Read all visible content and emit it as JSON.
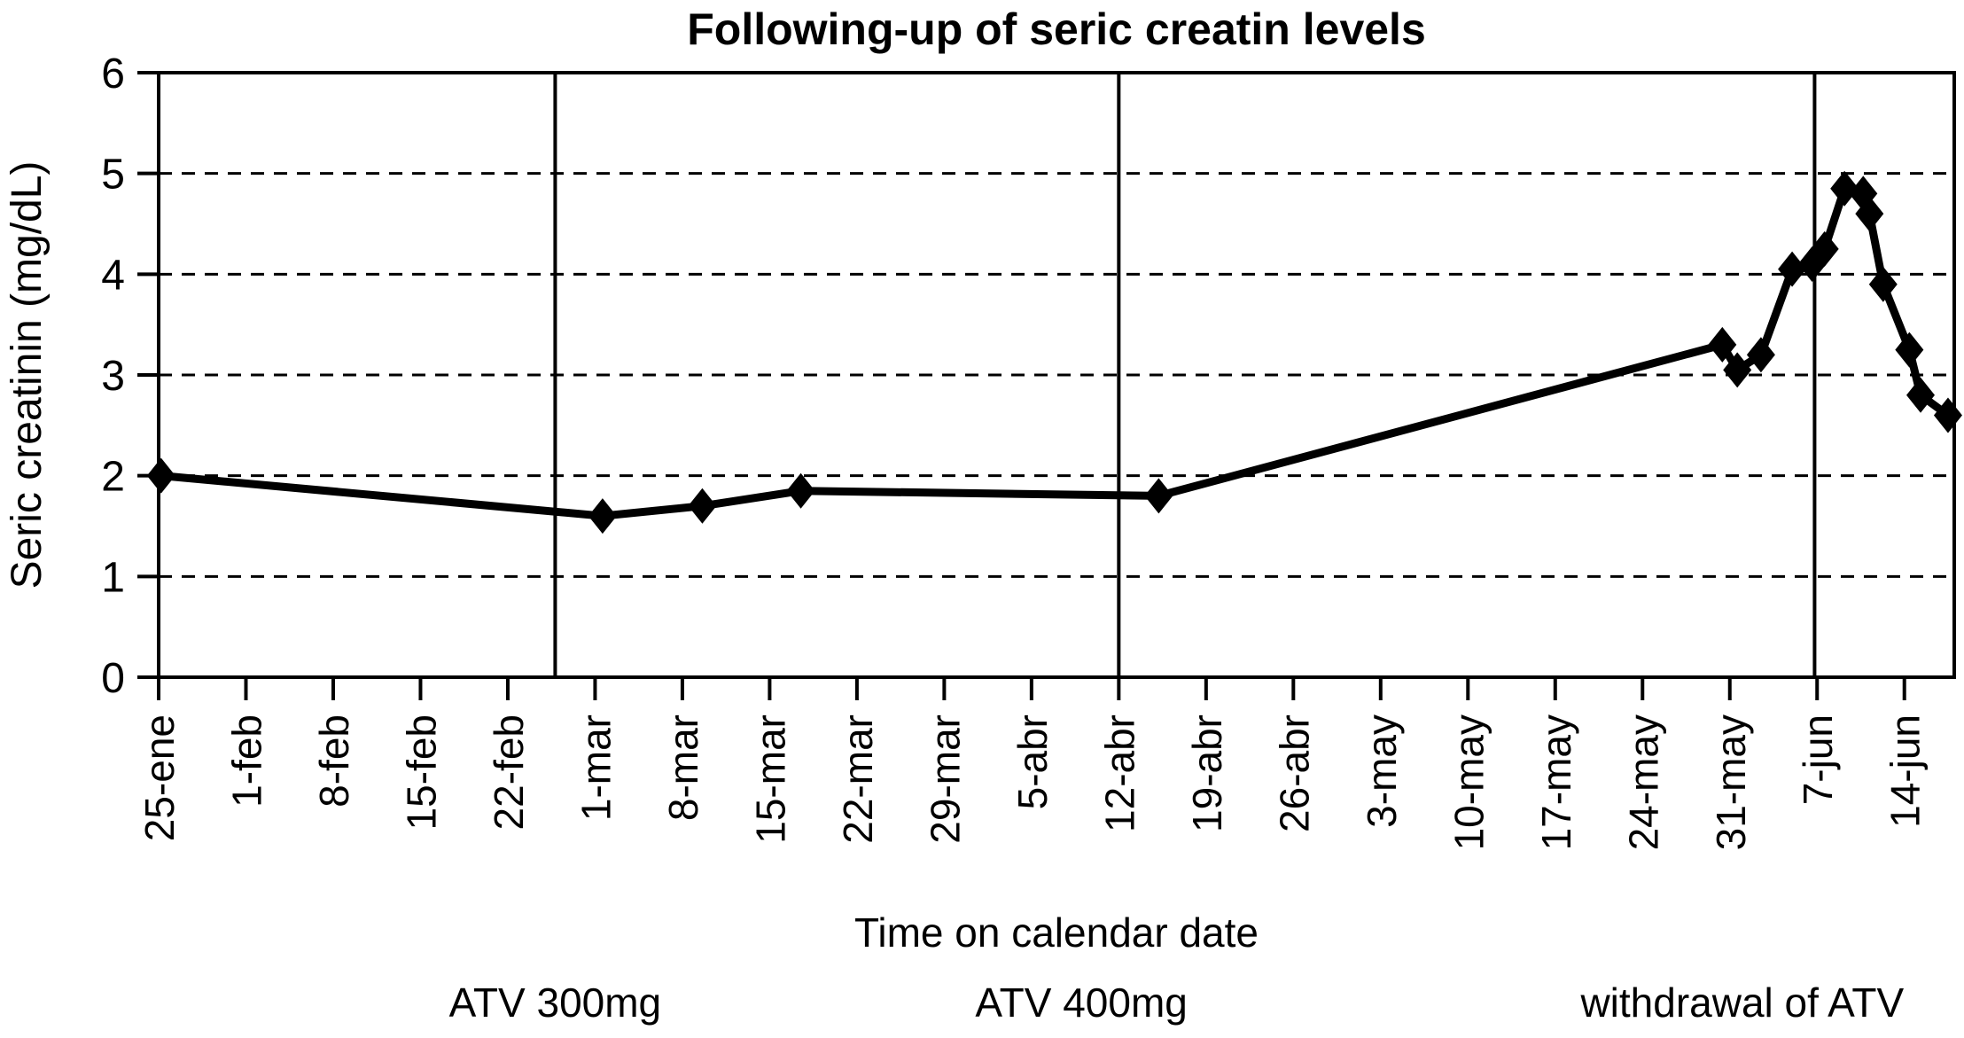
{
  "chart_data": {
    "type": "line",
    "title": "Following-up of seric creatin levels",
    "xlabel": "Time on calendar date",
    "ylabel": "Seric creatinin (mg/dL)",
    "ylim": [
      0,
      6
    ],
    "y_ticks": [
      0,
      1,
      2,
      3,
      4,
      5,
      6
    ],
    "x_tick_labels": [
      "25-ene",
      "1-feb",
      "8-feb",
      "15-feb",
      "22-feb",
      "1-mar",
      "8-mar",
      "15-mar",
      "22-mar",
      "29-mar",
      "5-abr",
      "12-abr",
      "19-abr",
      "26-abr",
      "3-may",
      "10-may",
      "17-may",
      "24-may",
      "31-may",
      "7-jun",
      "14-jun"
    ],
    "x_tick_interval_days": 7,
    "x_range_days": [
      0,
      144
    ],
    "grid": "horizontal-dashed",
    "legend_position": "none",
    "series": [
      {
        "name": "Seric creatinin",
        "marker": "diamond",
        "color": "#000000",
        "points": [
          {
            "day": 0.2,
            "value": 2.0
          },
          {
            "day": 35.6,
            "value": 1.6
          },
          {
            "day": 43.6,
            "value": 1.7
          },
          {
            "day": 51.5,
            "value": 1.85
          },
          {
            "day": 80.2,
            "value": 1.8
          },
          {
            "day": 125.4,
            "value": 3.3
          },
          {
            "day": 126.6,
            "value": 3.05
          },
          {
            "day": 128.5,
            "value": 3.2
          },
          {
            "day": 131.0,
            "value": 4.05
          },
          {
            "day": 132.6,
            "value": 4.1
          },
          {
            "day": 133.6,
            "value": 4.25
          },
          {
            "day": 135.2,
            "value": 4.85
          },
          {
            "day": 136.7,
            "value": 4.8
          },
          {
            "day": 137.2,
            "value": 4.6
          },
          {
            "day": 138.3,
            "value": 3.9
          },
          {
            "day": 140.4,
            "value": 3.25
          },
          {
            "day": 141.3,
            "value": 2.8
          },
          {
            "day": 143.5,
            "value": 2.6
          }
        ]
      }
    ],
    "phase_dividers_days": [
      31.8,
      77.0,
      132.8
    ],
    "phase_labels": [
      {
        "label": "ATV 300mg",
        "center_day": 31.8
      },
      {
        "label": "ATV 400mg",
        "center_day": 74.0
      },
      {
        "label": "withdrawal of ATV",
        "center_day": 127.0
      }
    ],
    "colors": {
      "line": "#000000",
      "background": "#ffffff",
      "grid": "#000000",
      "text": "#000000"
    }
  }
}
